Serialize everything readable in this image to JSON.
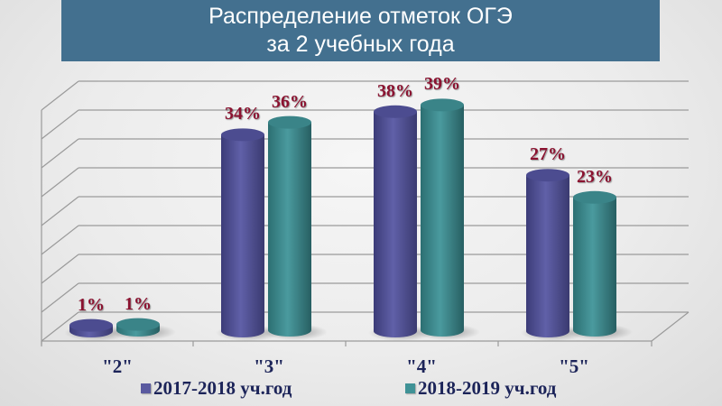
{
  "title": {
    "line1": "Распределение отметок ОГЭ",
    "line2": "за 2 учебных года"
  },
  "colors": {
    "title_bg": "#43708f",
    "series1": "#5a5aa0",
    "series2": "#3f9296",
    "value_label": "#8b1230",
    "axis_text": "#1c2459"
  },
  "chart_data": {
    "type": "bar",
    "style": "3d-cylinder",
    "title": "Распределение отметок ОГЭ за 2 учебных года",
    "categories": [
      "\"2\"",
      "\"3\"",
      "\"4\"",
      "\"5\""
    ],
    "series": [
      {
        "name": "2017-2018 уч.год",
        "values": [
          1,
          34,
          38,
          27
        ],
        "labels": [
          "1%",
          "34%",
          "38%",
          "27%"
        ]
      },
      {
        "name": "2018-2019 уч.год",
        "values": [
          1,
          36,
          39,
          23
        ],
        "labels": [
          "1%",
          "36%",
          "39%",
          "23%"
        ]
      }
    ],
    "xlabel": "",
    "ylabel": "",
    "unit": "%",
    "grid": true,
    "legend_position": "bottom"
  }
}
